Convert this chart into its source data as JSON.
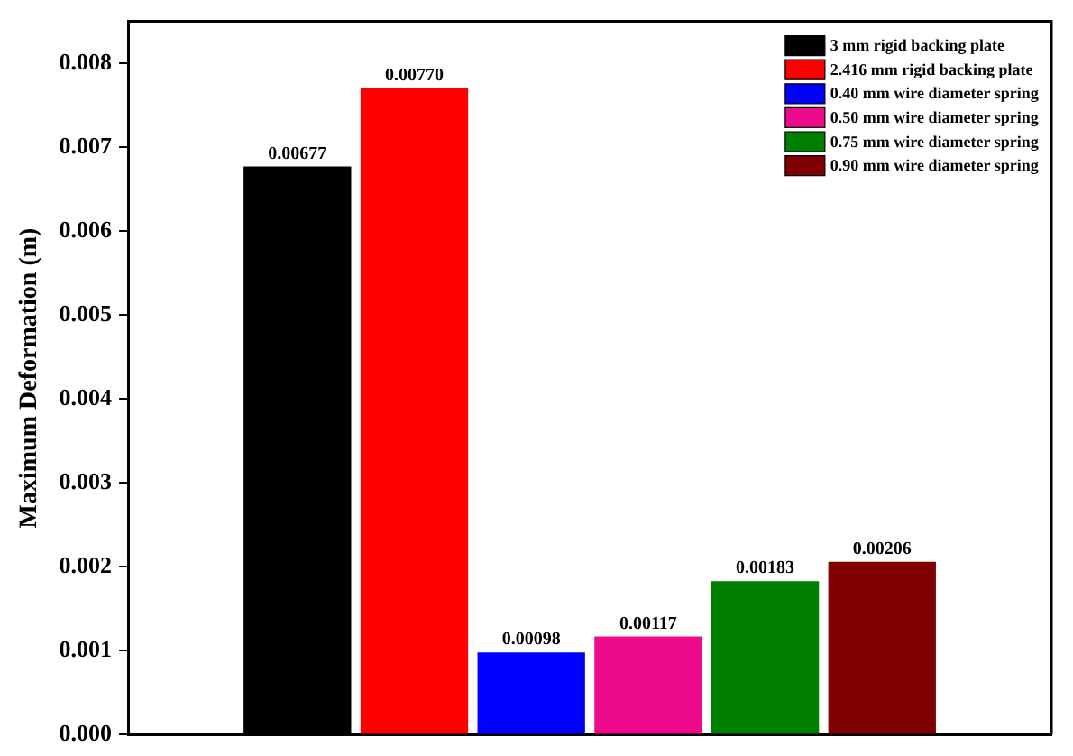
{
  "chart_data": {
    "type": "bar",
    "ylabel": "Maximum Deformation (m)",
    "categories": [
      null
    ],
    "series": [
      {
        "name": "3 mm rigid backing plate",
        "color": "#000000",
        "values": [
          0.00677
        ],
        "value_labels": [
          "0.00677"
        ]
      },
      {
        "name": "2.416 mm rigid backing plate",
        "color": "#ff0000",
        "values": [
          0.0077
        ],
        "value_labels": [
          "0.00770"
        ]
      },
      {
        "name": "0.40 mm wire diameter spring",
        "color": "#0000ff",
        "values": [
          0.00098
        ],
        "value_labels": [
          "0.00098"
        ]
      },
      {
        "name": "0.50 mm wire diameter spring",
        "color": "#ee0a8c",
        "values": [
          0.00117
        ],
        "value_labels": [
          "0.00117"
        ]
      },
      {
        "name": "0.75 mm wire diameter spring",
        "color": "#007f00",
        "values": [
          0.00183
        ],
        "value_labels": [
          "0.00183"
        ]
      },
      {
        "name": "0.90 mm wire diameter spring",
        "color": "#7f0000",
        "values": [
          0.00206
        ],
        "value_labels": [
          "0.00206"
        ]
      }
    ],
    "ylim": [
      0,
      0.0085
    ],
    "yticks": [
      {
        "value": 0,
        "label": "0.000"
      },
      {
        "value": 0.001,
        "label": "0.001"
      },
      {
        "value": 0.002,
        "label": "0.002"
      },
      {
        "value": 0.003,
        "label": "0.003"
      },
      {
        "value": 0.004,
        "label": "0.004"
      },
      {
        "value": 0.005,
        "label": "0.005"
      },
      {
        "value": 0.006,
        "label": "0.006"
      },
      {
        "value": 0.007,
        "label": "0.007"
      },
      {
        "value": 0.008,
        "label": "0.008"
      }
    ],
    "grid": false,
    "legend": "top right",
    "tick_labels": "y"
  }
}
